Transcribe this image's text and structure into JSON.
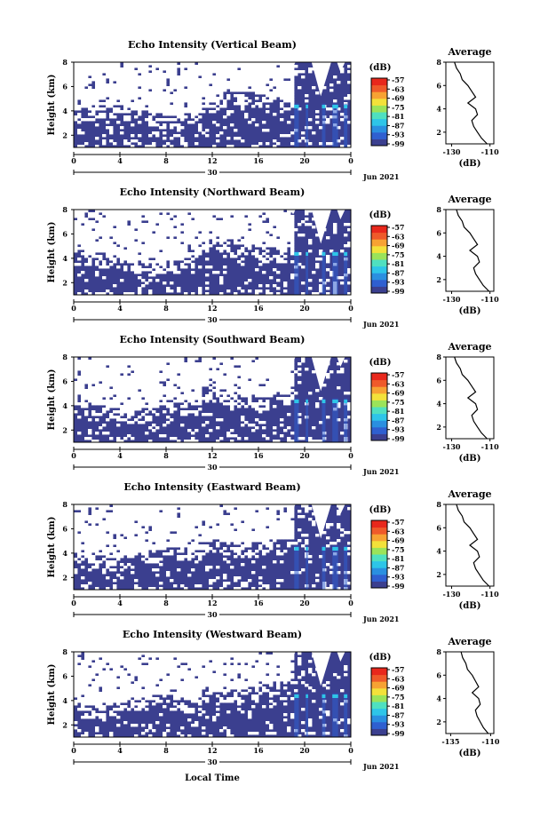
{
  "colors": {
    "background": "#3b3f8f",
    "colorbar": [
      "#3b3f8f",
      "#2f5fd0",
      "#2a8fe0",
      "#2ec5e8",
      "#4fe0c0",
      "#9be35a",
      "#f3e13a",
      "#f7a233",
      "#ef5a2a",
      "#e8281c"
    ]
  },
  "panels": [
    {
      "title": "Echo Intensity (Vertical Beam)",
      "avg_x": [
        -130,
        -110
      ],
      "avg_x_labels": [
        "-130",
        "-110"
      ]
    },
    {
      "title": "Echo Intensity (Northward Beam)",
      "avg_x": [
        -130,
        -110
      ],
      "avg_x_labels": [
        "-130",
        "-110"
      ]
    },
    {
      "title": "Echo Intensity (Southward Beam)",
      "avg_x": [
        -130,
        -110
      ],
      "avg_x_labels": [
        "-130",
        "-110"
      ]
    },
    {
      "title": "Echo Intensity (Eastward Beam)",
      "avg_x": [
        -130,
        -110
      ],
      "avg_x_labels": [
        "-130",
        "-110"
      ]
    },
    {
      "title": "Echo Intensity (Westward Beam)",
      "avg_x": [
        -135,
        -110
      ],
      "avg_x_labels": [
        "-135",
        "-110"
      ]
    }
  ],
  "common": {
    "ylabel": "Height (km)",
    "yticks": [
      "2",
      "4",
      "6",
      "8"
    ],
    "xticks": [
      "0",
      "4",
      "8",
      "12",
      "16",
      "20",
      "0"
    ],
    "date_label": "30",
    "month_label": "Jun 2021",
    "unit": "(dB)",
    "cbar_labels": [
      "-57",
      "-63",
      "-69",
      "-75",
      "-81",
      "-87",
      "-93",
      "-99"
    ],
    "avg_title": "Average",
    "avg_yticks": [
      "2",
      "4",
      "6",
      "8"
    ],
    "avg_xlabel": "(dB)",
    "xlabel": "Local Time"
  },
  "chart_data": {
    "type": "heatmap",
    "x_range_hours": [
      0,
      24
    ],
    "y_range_km": [
      1,
      8
    ],
    "colorbar_range_db": [
      -99,
      -57
    ],
    "average_profile_km": [
      8.0,
      7.5,
      7.0,
      6.5,
      6.0,
      5.5,
      5.0,
      4.5,
      4.0,
      3.5,
      3.0,
      2.5,
      2.0,
      1.5,
      1.0
    ],
    "average_profile_db": [
      -128,
      -127,
      -125,
      -124,
      -121,
      -119,
      -117,
      -121,
      -117,
      -116,
      -119,
      -118,
      -116,
      -114,
      -111
    ]
  }
}
